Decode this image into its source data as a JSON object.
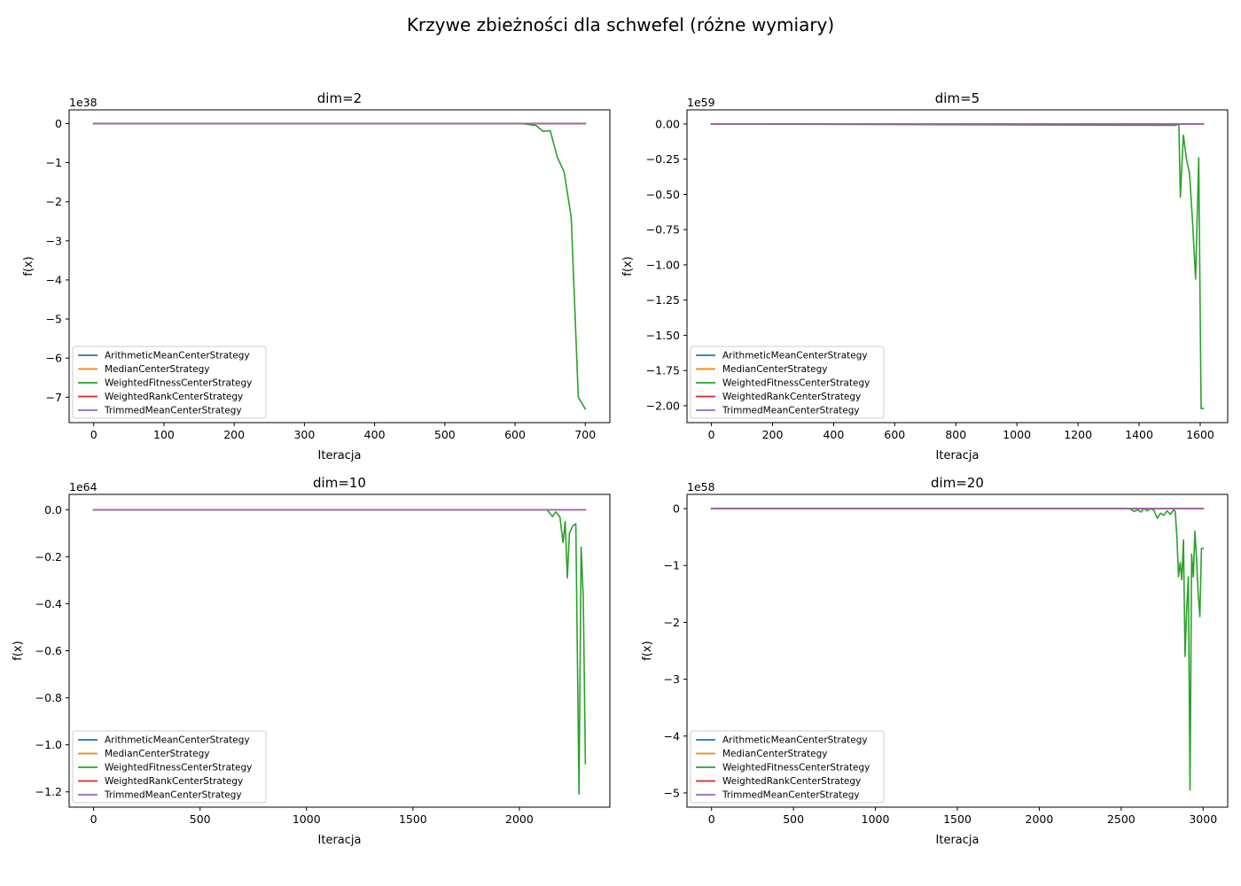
{
  "suptitle": "Krzywe zbieżności dla schwefel (różne wymiary)",
  "colors": {
    "ArithmeticMeanCenterStrategy": "#1f77b4",
    "MedianCenterStrategy": "#ff7f0e",
    "WeightedFitnessCenterStrategy": "#2ca02c",
    "WeightedRankCenterStrategy": "#d62728",
    "TrimmedMeanCenterStrategy": "#9467bd"
  },
  "chart_data": [
    {
      "type": "line",
      "title": "dim=2",
      "xlabel": "Iteracja",
      "ylabel": "f(x)",
      "offset_text": "1e38",
      "xlim": [
        -35,
        735
      ],
      "ylim": [
        -7.65,
        0.35
      ],
      "xticks": [
        0,
        100,
        200,
        300,
        400,
        500,
        600,
        700
      ],
      "xtick_labels": [
        "0",
        "100",
        "200",
        "300",
        "400",
        "500",
        "600",
        "700"
      ],
      "yticks": [
        0,
        -1,
        -2,
        -3,
        -4,
        -5,
        -6,
        -7
      ],
      "ytick_labels": [
        "0",
        "−1",
        "−2",
        "−3",
        "−4",
        "−5",
        "−6",
        "−7"
      ],
      "legend": "lower-left",
      "series": [
        {
          "name": "ArithmeticMeanCenterStrategy",
          "x": [
            0,
            700
          ],
          "y": [
            0,
            0
          ]
        },
        {
          "name": "MedianCenterStrategy",
          "x": [
            0,
            700
          ],
          "y": [
            0,
            0
          ]
        },
        {
          "name": "WeightedFitnessCenterStrategy",
          "x": [
            0,
            610,
            630,
            640,
            650,
            660,
            670,
            680,
            690,
            700
          ],
          "y": [
            0,
            0,
            -0.05,
            -0.2,
            -0.18,
            -0.85,
            -1.25,
            -2.4,
            -7.0,
            -7.3
          ]
        },
        {
          "name": "WeightedRankCenterStrategy",
          "x": [
            0,
            700
          ],
          "y": [
            0,
            0
          ]
        },
        {
          "name": "TrimmedMeanCenterStrategy",
          "x": [
            0,
            700
          ],
          "y": [
            0,
            0
          ]
        }
      ]
    },
    {
      "type": "line",
      "title": "dim=5",
      "xlabel": "Iteracja",
      "ylabel": "f(x)",
      "offset_text": "1e59",
      "xlim": [
        -80,
        1690
      ],
      "ylim": [
        -2.12,
        0.1
      ],
      "xticks": [
        0,
        200,
        400,
        600,
        800,
        1000,
        1200,
        1400,
        1600
      ],
      "xtick_labels": [
        "0",
        "200",
        "400",
        "600",
        "800",
        "1000",
        "1200",
        "1400",
        "1600"
      ],
      "yticks": [
        0,
        -0.25,
        -0.5,
        -0.75,
        -1.0,
        -1.25,
        -1.5,
        -1.75,
        -2.0
      ],
      "ytick_labels": [
        "0.00",
        "−0.25",
        "−0.50",
        "−0.75",
        "−1.00",
        "−1.25",
        "−1.50",
        "−1.75",
        "−2.00"
      ],
      "legend": "lower-left",
      "series": [
        {
          "name": "ArithmeticMeanCenterStrategy",
          "x": [
            0,
            1610
          ],
          "y": [
            0,
            0
          ]
        },
        {
          "name": "MedianCenterStrategy",
          "x": [
            0,
            1610
          ],
          "y": [
            0,
            0
          ]
        },
        {
          "name": "WeightedFitnessCenterStrategy",
          "x": [
            0,
            1520,
            1530,
            1535,
            1545,
            1555,
            1565,
            1575,
            1585,
            1595,
            1603,
            1610
          ],
          "y": [
            0,
            -0.01,
            0,
            -0.52,
            -0.08,
            -0.25,
            -0.35,
            -0.7,
            -1.1,
            -0.24,
            -2.02,
            -2.02
          ]
        },
        {
          "name": "WeightedRankCenterStrategy",
          "x": [
            0,
            1610
          ],
          "y": [
            0,
            0
          ]
        },
        {
          "name": "TrimmedMeanCenterStrategy",
          "x": [
            0,
            1610
          ],
          "y": [
            0,
            0
          ]
        }
      ]
    },
    {
      "type": "line",
      "title": "dim=10",
      "xlabel": "Iteracja",
      "ylabel": "f(x)",
      "offset_text": "1e64",
      "xlim": [
        -115,
        2425
      ],
      "ylim": [
        -1.265,
        0.065
      ],
      "xticks": [
        0,
        500,
        1000,
        1500,
        2000
      ],
      "xtick_labels": [
        "0",
        "500",
        "1000",
        "1500",
        "2000"
      ],
      "yticks": [
        0,
        -0.2,
        -0.4,
        -0.6,
        -0.8,
        -1.0,
        -1.2
      ],
      "ytick_labels": [
        "0.0",
        "−0.2",
        "−0.4",
        "−0.6",
        "−0.8",
        "−1.0",
        "−1.2"
      ],
      "legend": "lower-left",
      "series": [
        {
          "name": "ArithmeticMeanCenterStrategy",
          "x": [
            0,
            2310
          ],
          "y": [
            0,
            0
          ]
        },
        {
          "name": "MedianCenterStrategy",
          "x": [
            0,
            2310
          ],
          "y": [
            0,
            0
          ]
        },
        {
          "name": "WeightedFitnessCenterStrategy",
          "x": [
            0,
            2130,
            2155,
            2170,
            2190,
            2205,
            2215,
            2225,
            2235,
            2250,
            2265,
            2280,
            2290,
            2300,
            2310
          ],
          "y": [
            0,
            0,
            -0.03,
            -0.01,
            -0.03,
            -0.14,
            -0.05,
            -0.29,
            -0.1,
            -0.07,
            -0.06,
            -1.21,
            -0.16,
            -0.37,
            -1.08
          ]
        },
        {
          "name": "WeightedRankCenterStrategy",
          "x": [
            0,
            2310
          ],
          "y": [
            0,
            0
          ]
        },
        {
          "name": "TrimmedMeanCenterStrategy",
          "x": [
            0,
            2310
          ],
          "y": [
            0,
            0
          ]
        }
      ]
    },
    {
      "type": "line",
      "title": "dim=20",
      "xlabel": "Iteracja",
      "ylabel": "f(x)",
      "offset_text": "1e58",
      "xlim": [
        -150,
        3150
      ],
      "ylim": [
        -5.25,
        0.25
      ],
      "xticks": [
        0,
        500,
        1000,
        1500,
        2000,
        2500,
        3000
      ],
      "xtick_labels": [
        "0",
        "500",
        "1000",
        "1500",
        "2000",
        "2500",
        "3000"
      ],
      "yticks": [
        0,
        -1,
        -2,
        -3,
        -4,
        -5
      ],
      "ytick_labels": [
        "0",
        "−1",
        "−2",
        "−3",
        "−4",
        "−5"
      ],
      "legend": "lower-left",
      "series": [
        {
          "name": "ArithmeticMeanCenterStrategy",
          "x": [
            0,
            3000
          ],
          "y": [
            0,
            0
          ]
        },
        {
          "name": "MedianCenterStrategy",
          "x": [
            0,
            3000
          ],
          "y": [
            0,
            0
          ]
        },
        {
          "name": "WeightedFitnessCenterStrategy",
          "x": [
            0,
            2550,
            2580,
            2600,
            2620,
            2640,
            2660,
            2680,
            2700,
            2720,
            2740,
            2760,
            2780,
            2800,
            2810,
            2820,
            2830,
            2840,
            2850,
            2860,
            2870,
            2880,
            2890,
            2900,
            2910,
            2920,
            2930,
            2940,
            2950,
            2960,
            2970,
            2980,
            2990,
            3000
          ],
          "y": [
            0,
            0,
            -0.05,
            -0.02,
            -0.06,
            0,
            -0.04,
            0,
            -0.03,
            -0.17,
            -0.08,
            -0.12,
            -0.04,
            -0.1,
            -0.06,
            -0.02,
            -0.05,
            -0.5,
            -1.2,
            -0.95,
            -1.25,
            -0.55,
            -2.6,
            -1.75,
            -1.2,
            -4.95,
            -0.8,
            -1.2,
            -0.4,
            -0.9,
            -1.5,
            -1.9,
            -0.7,
            -0.7
          ]
        },
        {
          "name": "WeightedRankCenterStrategy",
          "x": [
            0,
            3000
          ],
          "y": [
            0,
            0
          ]
        },
        {
          "name": "TrimmedMeanCenterStrategy",
          "x": [
            0,
            3000
          ],
          "y": [
            0,
            0
          ]
        }
      ]
    }
  ]
}
